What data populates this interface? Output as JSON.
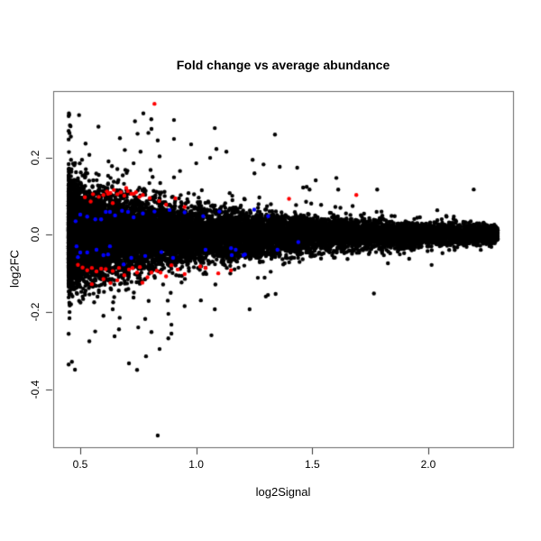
{
  "chart_data": {
    "type": "scatter",
    "title": "Fold change vs average abundance",
    "xlabel": "log2Signal",
    "ylabel": "log2FC",
    "xlim": [
      0.3834,
      2.3656
    ],
    "ylim": [
      -0.5503,
      0.372
    ],
    "grid": false,
    "legend": null,
    "x_ticks": [
      {
        "value": 0.5,
        "label": "0.5"
      },
      {
        "value": 1.0,
        "label": "1.0"
      },
      {
        "value": 1.5,
        "label": "1.5"
      },
      {
        "value": 2.0,
        "label": "2.0"
      }
    ],
    "y_ticks": [
      {
        "value": -0.4,
        "label": "-0.4"
      },
      {
        "value": -0.2,
        "label": "-0.2"
      },
      {
        "value": 0.0,
        "label": "0.0"
      },
      {
        "value": 0.2,
        "label": "0.2"
      }
    ],
    "colors": {
      "point": "#000000",
      "highlight_up": "#ff0000",
      "highlight_down": "#0000ff",
      "frame": "#666666",
      "tick": "#333333",
      "text": "#000000",
      "background": "#ffffff"
    },
    "point_radius_px": 2.2,
    "cloud": {
      "n": 16000,
      "seed": 42,
      "x_min": 0.45,
      "x_max": 2.3,
      "x_power": 2.15,
      "sd_base": 0.004,
      "sd_amp": 0.05,
      "sd_decay": 1.05,
      "sd_ref": 0.55,
      "outlier_frac": 0.012,
      "outlier_scale_min": 2.2,
      "outlier_scale_range": 2.8,
      "y_clamp": [
        -0.36,
        0.315
      ]
    },
    "black_outliers": [
      [
        0.904,
        0.297
      ],
      [
        0.807,
        0.274
      ],
      [
        1.08,
        0.276
      ],
      [
        0.834,
        0.244
      ],
      [
        0.904,
        0.248
      ],
      [
        0.978,
        0.234
      ],
      [
        1.087,
        0.222
      ],
      [
        0.842,
        0.203
      ],
      [
        1.06,
        0.199
      ],
      [
        1.243,
        0.194
      ],
      [
        1.29,
        0.182
      ],
      [
        1.251,
        0.159
      ],
      [
        1.476,
        0.124
      ],
      [
        1.604,
        0.147
      ],
      [
        1.612,
        0.117
      ],
      [
        1.78,
        0.117
      ],
      [
        0.671,
        0.25
      ],
      [
        0.622,
        0.19
      ],
      [
        0.58,
        0.155
      ],
      [
        0.66,
        0.17
      ],
      [
        0.7,
        0.16
      ],
      [
        0.73,
        0.185
      ],
      [
        0.76,
        0.215
      ],
      [
        0.93,
        0.165
      ],
      [
        1.0,
        0.185
      ],
      [
        1.13,
        0.215
      ],
      [
        1.36,
        0.176
      ],
      [
        1.515,
        0.141
      ],
      [
        0.834,
        -0.52
      ],
      [
        0.71,
        -0.333
      ],
      [
        0.745,
        -0.35
      ],
      [
        0.648,
        -0.263
      ],
      [
        0.667,
        -0.245
      ],
      [
        0.75,
        -0.24
      ],
      [
        0.807,
        -0.252
      ],
      [
        0.842,
        -0.296
      ],
      [
        0.893,
        -0.233
      ],
      [
        0.893,
        -0.256
      ],
      [
        1.08,
        -0.193
      ],
      [
        1.23,
        -0.193
      ],
      [
        0.64,
        -0.193
      ],
      [
        0.6,
        -0.21
      ],
      [
        0.56,
        -0.175
      ],
      [
        0.67,
        -0.215
      ],
      [
        0.78,
        -0.218
      ],
      [
        0.88,
        -0.205
      ],
      [
        0.95,
        -0.185
      ],
      [
        1.02,
        -0.17
      ],
      [
        1.3,
        -0.16
      ],
      [
        0.52,
        -0.15
      ]
    ],
    "red_points": [
      [
        0.545,
        0.086
      ],
      [
        0.52,
        0.097
      ],
      [
        0.555,
        0.105
      ],
      [
        0.58,
        0.098
      ],
      [
        0.6,
        0.103
      ],
      [
        0.615,
        0.112
      ],
      [
        0.63,
        0.108
      ],
      [
        0.645,
        0.116
      ],
      [
        0.62,
        0.106
      ],
      [
        0.66,
        0.105
      ],
      [
        0.675,
        0.11
      ],
      [
        0.69,
        0.101
      ],
      [
        0.705,
        0.113
      ],
      [
        0.72,
        0.106
      ],
      [
        0.73,
        0.106
      ],
      [
        0.74,
        0.11
      ],
      [
        0.755,
        0.098
      ],
      [
        0.77,
        0.103
      ],
      [
        0.8,
        0.095
      ],
      [
        0.84,
        0.087
      ],
      [
        0.87,
        0.078
      ],
      [
        0.91,
        0.094
      ],
      [
        0.95,
        0.072
      ],
      [
        0.698,
        0.121
      ],
      [
        0.64,
        0.082
      ],
      [
        1.4,
        0.093
      ],
      [
        1.69,
        0.103
      ],
      [
        0.82,
        0.339
      ],
      [
        0.49,
        -0.078
      ],
      [
        0.51,
        -0.085
      ],
      [
        0.53,
        -0.092
      ],
      [
        0.55,
        -0.086
      ],
      [
        0.57,
        -0.095
      ],
      [
        0.59,
        -0.088
      ],
      [
        0.61,
        -0.089
      ],
      [
        0.64,
        -0.094
      ],
      [
        0.667,
        -0.086
      ],
      [
        0.69,
        -0.105
      ],
      [
        0.71,
        -0.09
      ],
      [
        0.725,
        -0.086
      ],
      [
        0.745,
        -0.098
      ],
      [
        0.757,
        -0.084
      ],
      [
        0.768,
        -0.124
      ],
      [
        0.79,
        -0.11
      ],
      [
        0.807,
        -0.098
      ],
      [
        0.83,
        -0.093
      ],
      [
        0.846,
        -0.098
      ],
      [
        0.87,
        -0.108
      ],
      [
        0.893,
        -0.079
      ],
      [
        0.92,
        -0.09
      ],
      [
        0.95,
        -0.102
      ],
      [
        1.017,
        -0.082
      ],
      [
        1.04,
        -0.086
      ],
      [
        1.095,
        -0.1
      ],
      [
        1.15,
        -0.092
      ],
      [
        0.63,
        -0.125
      ],
      [
        0.6,
        -0.115
      ],
      [
        0.66,
        -0.118
      ],
      [
        0.55,
        -0.128
      ]
    ],
    "blue_points": [
      [
        0.5,
        0.052
      ],
      [
        0.53,
        0.047
      ],
      [
        0.565,
        0.04
      ],
      [
        0.59,
        0.04
      ],
      [
        0.61,
        0.059
      ],
      [
        0.628,
        0.059
      ],
      [
        0.65,
        0.05
      ],
      [
        0.68,
        0.062
      ],
      [
        0.706,
        0.059
      ],
      [
        0.73,
        0.045
      ],
      [
        0.77,
        0.055
      ],
      [
        0.82,
        0.06
      ],
      [
        0.885,
        0.064
      ],
      [
        0.95,
        0.058
      ],
      [
        1.03,
        0.048
      ],
      [
        1.31,
        0.048
      ],
      [
        1.1,
        0.06
      ],
      [
        1.25,
        0.065
      ],
      [
        0.48,
        0.035
      ],
      [
        0.484,
        -0.03
      ],
      [
        0.5,
        -0.046
      ],
      [
        0.53,
        -0.046
      ],
      [
        0.57,
        -0.039
      ],
      [
        0.6,
        -0.053
      ],
      [
        0.628,
        -0.03
      ],
      [
        0.62,
        -0.051
      ],
      [
        0.687,
        -0.077
      ],
      [
        0.72,
        -0.06
      ],
      [
        0.78,
        -0.055
      ],
      [
        0.85,
        -0.045
      ],
      [
        0.9,
        -0.06
      ],
      [
        1.04,
        -0.039
      ],
      [
        1.15,
        -0.035
      ],
      [
        1.17,
        -0.039
      ],
      [
        1.21,
        -0.051
      ],
      [
        1.153,
        -0.053
      ],
      [
        1.204,
        -0.053
      ],
      [
        1.35,
        -0.039
      ],
      [
        1.44,
        -0.019
      ],
      [
        0.49,
        -0.058
      ]
    ]
  }
}
